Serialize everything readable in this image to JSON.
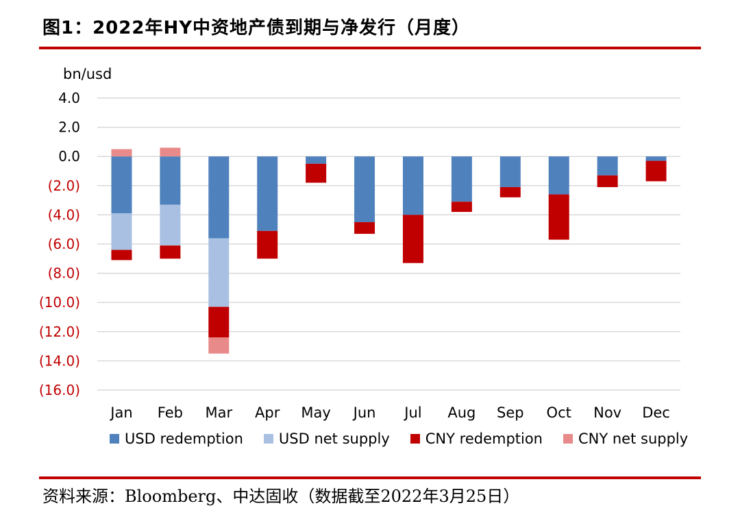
{
  "title": "图1：2022年HY中资地产债到期与净发行（月度）",
  "source": "资料来源：Bloomberg、中达固收（数据截至2022年3月25日）",
  "colors": {
    "usd_redemption": "#4f81bd",
    "usd_net_supply": "#a9c0e2",
    "cny_redemption": "#c00000",
    "cny_net_supply": "#e88a8a",
    "rule": "#c00000",
    "grid": "#d9d9d9",
    "negative_tick": "#c00000"
  },
  "chart_data": {
    "type": "bar",
    "stacked": true,
    "ylabel": "bn/usd",
    "ylim": [
      -16,
      4
    ],
    "y_ticks": [
      4,
      2,
      0,
      -2,
      -4,
      -6,
      -8,
      -10,
      -12,
      -14,
      -16
    ],
    "y_tick_labels": [
      "4.0",
      "2.0",
      "0.0",
      "(2.0)",
      "(4.0)",
      "(6.0)",
      "(8.0)",
      "(10.0)",
      "(12.0)",
      "(14.0)",
      "(16.0)"
    ],
    "grid": true,
    "legend_position": "bottom",
    "categories": [
      "Jan",
      "Feb",
      "Mar",
      "Apr",
      "May",
      "Jun",
      "Jul",
      "Aug",
      "Sep",
      "Oct",
      "Nov",
      "Dec"
    ],
    "series": [
      {
        "name": "USD redemption",
        "values": [
          -3.9,
          -3.3,
          -5.6,
          -5.1,
          -0.5,
          -4.5,
          -4.0,
          -3.1,
          -2.1,
          -2.6,
          -1.3,
          -0.3
        ]
      },
      {
        "name": "USD net supply",
        "values": [
          -2.5,
          -2.8,
          -4.7,
          0,
          0,
          0,
          0,
          0,
          0,
          0,
          0,
          0
        ]
      },
      {
        "name": "CNY redemption",
        "values": [
          -0.7,
          -0.9,
          -2.1,
          -1.9,
          -1.3,
          -0.8,
          -3.3,
          -0.7,
          -0.7,
          -3.1,
          -0.8,
          -1.4
        ]
      },
      {
        "name": "CNY net supply",
        "values": [
          0.5,
          0.6,
          -1.1,
          0,
          0,
          0,
          0,
          0,
          0,
          0,
          0,
          0
        ]
      }
    ]
  }
}
